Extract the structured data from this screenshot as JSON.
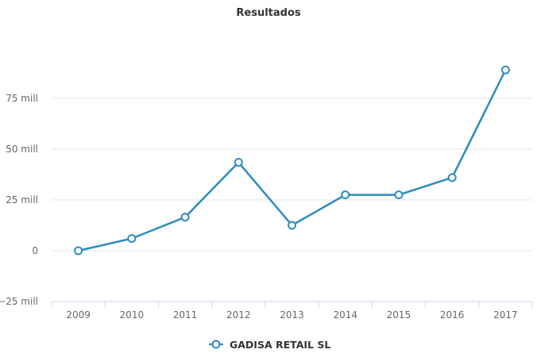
{
  "chart_data": {
    "type": "line",
    "title": "Resultados",
    "categories": [
      "2009",
      "2010",
      "2011",
      "2012",
      "2013",
      "2014",
      "2015",
      "2016",
      "2017"
    ],
    "series": [
      {
        "name": "GADISA RETAIL SL",
        "values": [
          0,
          6,
          16.5,
          43.5,
          12.5,
          27.5,
          27.5,
          36,
          89
        ],
        "color": "#2b8cbe"
      }
    ],
    "yticks": [
      -25,
      0,
      25,
      50,
      75
    ],
    "ytick_labels": [
      "−25 mill",
      "0",
      "25 mill",
      "50 mill",
      "75 mill"
    ],
    "ylim": [
      -25,
      100
    ],
    "xlabel": "",
    "ylabel": "",
    "grid": true,
    "legend": "bottom-center"
  }
}
